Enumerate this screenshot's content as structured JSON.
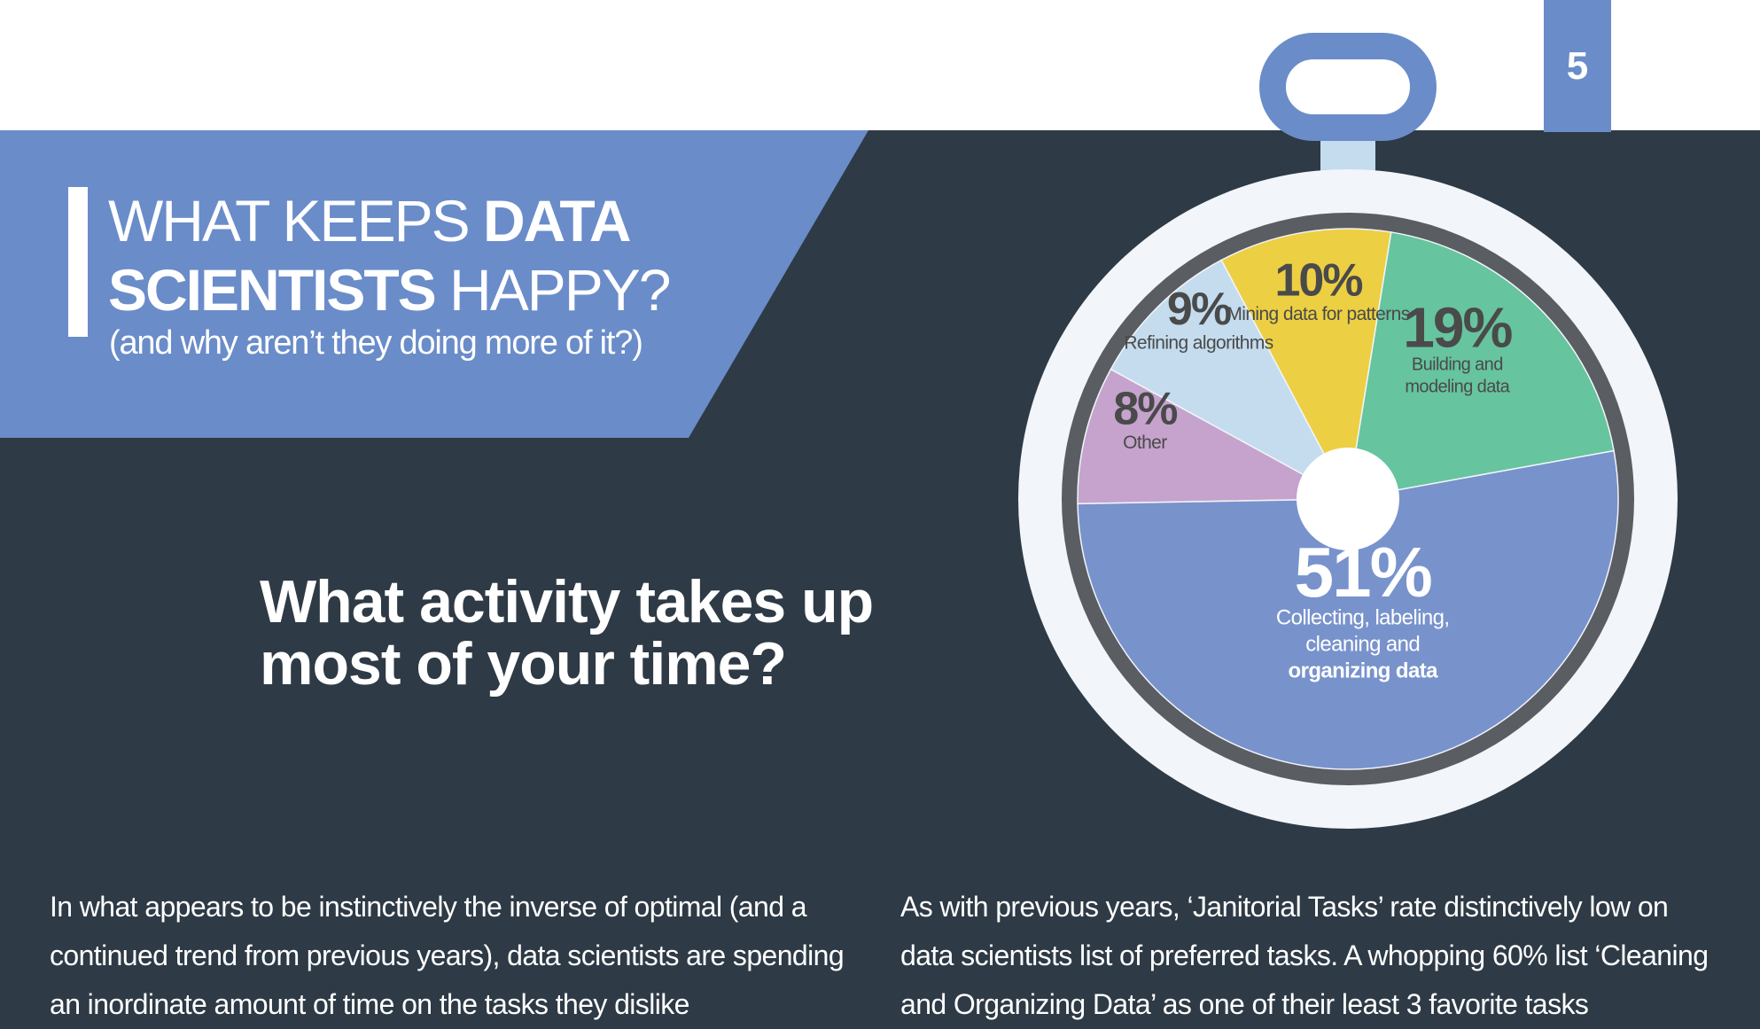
{
  "page_number": "5",
  "header": {
    "title_part1": "WHAT KEEPS ",
    "title_bold1": "DATA",
    "title_bold2": "SCIENTISTS",
    "title_part2": " HAPPY?",
    "subtitle": "(and why aren’t they doing more of it?)"
  },
  "question": "What activity takes up most of your time?",
  "body": {
    "left": "In what appears to be instinctively the inverse of optimal (and a continued trend from previous years), data scientists are spending an inordinate amount of time on the tasks they dislike",
    "right": "As with previous years, ‘Janitorial Tasks’ rate distinctively low on data scientists list of preferred tasks. A whopping 60% list ‘Cleaning and Organizing Data’ as one of their least 3 favorite tasks"
  },
  "colors": {
    "background": "#2e3a45",
    "accent": "#6a8cc9",
    "white": "#ffffff"
  },
  "chart_data": {
    "type": "pie",
    "title": "What activity takes up most of your time?",
    "slices": [
      {
        "name": "Other",
        "value": 8,
        "label_pct": "8%",
        "label_lines": [
          "Other"
        ],
        "color": "#c5a3cd",
        "text_color": "#4a4a4a"
      },
      {
        "name": "Refining algorithms",
        "value": 9,
        "label_pct": "9%",
        "label_lines": [
          "Refining algorithms"
        ],
        "color": "#c4dcee",
        "text_color": "#4a4a4a"
      },
      {
        "name": "Mining data for patterns",
        "value": 10,
        "label_pct": "10%",
        "label_lines": [
          "Mining data for patterns"
        ],
        "color": "#eccf43",
        "text_color": "#4a4a4a"
      },
      {
        "name": "Building and modeling data",
        "value": 19,
        "label_pct": "19%",
        "label_lines": [
          "Building and",
          "modeling data"
        ],
        "color": "#66c49f",
        "text_color": "#4a4a4a"
      },
      {
        "name": "Collecting, labeling, cleaning and organizing data",
        "value": 51,
        "label_pct": "51%",
        "label_lines": [
          "Collecting, labeling,",
          "cleaning and",
          "organizing data"
        ],
        "color": "#7892cc",
        "text_color": "#ffffff"
      }
    ],
    "stopwatch_colors": {
      "face": "#f2f5f9",
      "ring": "#5a5d61",
      "knob": "#6a8cc9",
      "stem": "#c4dcee"
    }
  }
}
